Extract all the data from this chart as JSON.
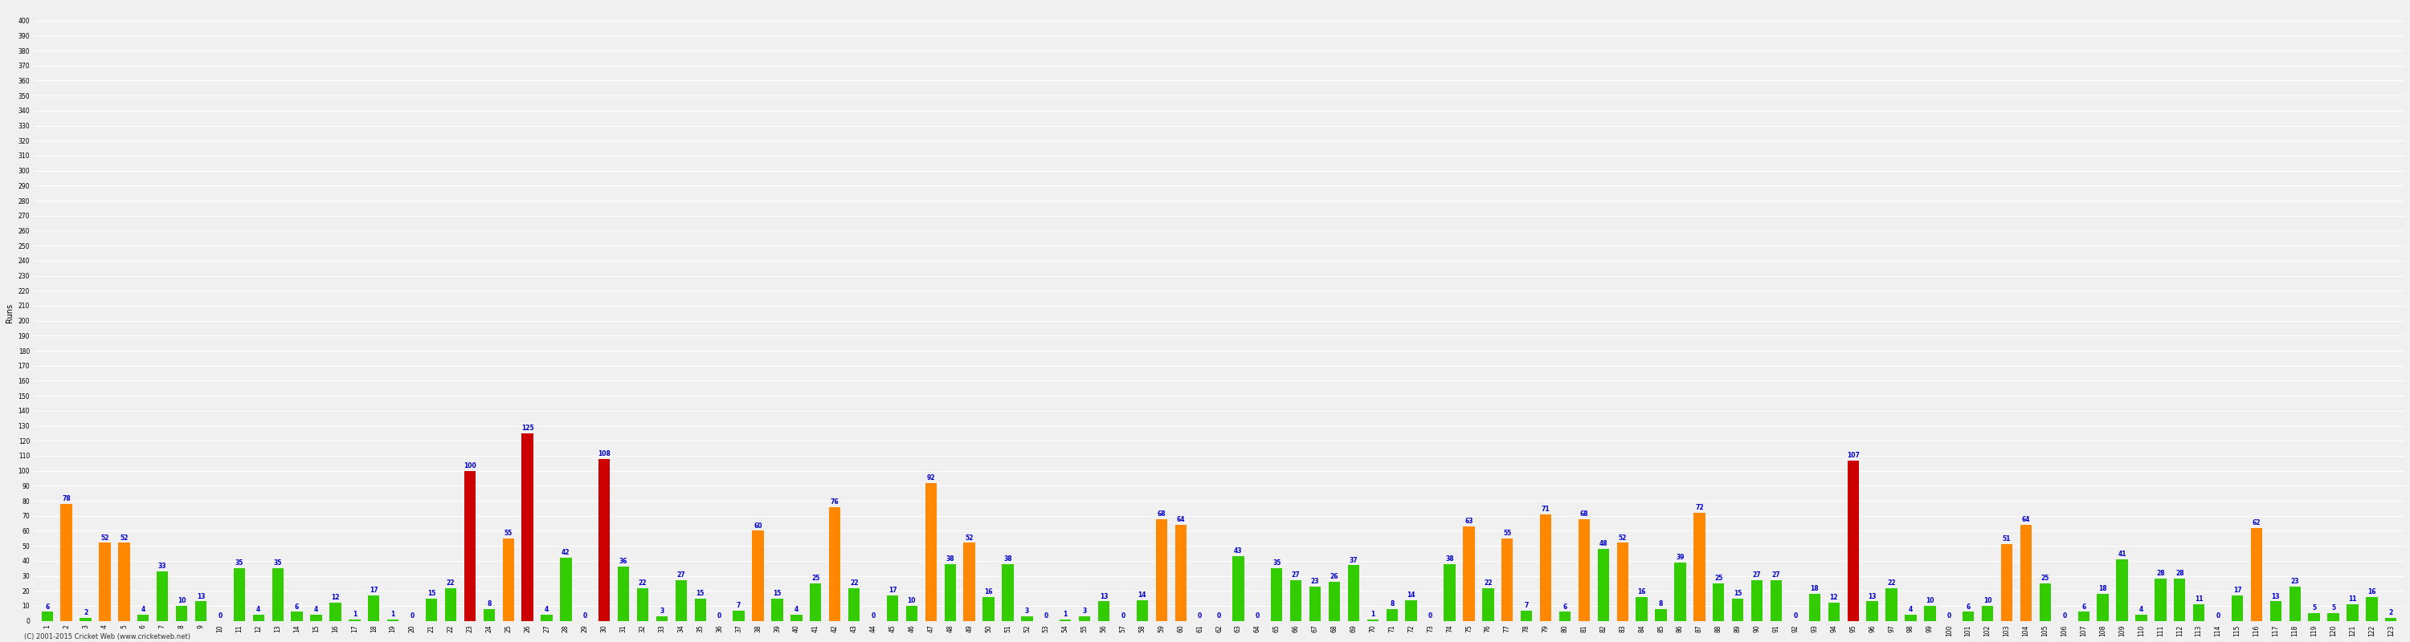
{
  "ylabel": "Runs",
  "footer": "(C) 2001-2015 Cricket Web (www.cricketweb.net)",
  "ylim": [
    0,
    410
  ],
  "background_color": "#f0f0f0",
  "grid_color": "#ffffff",
  "innings": [
    {
      "num": 1,
      "runs": 6,
      "color": "green"
    },
    {
      "num": 2,
      "runs": 78,
      "color": "orange"
    },
    {
      "num": 3,
      "runs": 2,
      "color": "green"
    },
    {
      "num": 4,
      "runs": 52,
      "color": "orange"
    },
    {
      "num": 5,
      "runs": 52,
      "color": "orange"
    },
    {
      "num": 6,
      "runs": 4,
      "color": "green"
    },
    {
      "num": 7,
      "runs": 33,
      "color": "green"
    },
    {
      "num": 8,
      "runs": 10,
      "color": "green"
    },
    {
      "num": 9,
      "runs": 13,
      "color": "green"
    },
    {
      "num": 10,
      "runs": 0,
      "color": "green"
    },
    {
      "num": 11,
      "runs": 35,
      "color": "green"
    },
    {
      "num": 12,
      "runs": 4,
      "color": "green"
    },
    {
      "num": 13,
      "runs": 35,
      "color": "green"
    },
    {
      "num": 14,
      "runs": 6,
      "color": "green"
    },
    {
      "num": 15,
      "runs": 4,
      "color": "green"
    },
    {
      "num": 16,
      "runs": 12,
      "color": "green"
    },
    {
      "num": 17,
      "runs": 1,
      "color": "green"
    },
    {
      "num": 18,
      "runs": 17,
      "color": "green"
    },
    {
      "num": 19,
      "runs": 1,
      "color": "green"
    },
    {
      "num": 20,
      "runs": 0,
      "color": "green"
    },
    {
      "num": 21,
      "runs": 15,
      "color": "green"
    },
    {
      "num": 22,
      "runs": 22,
      "color": "green"
    },
    {
      "num": 23,
      "runs": 100,
      "color": "red"
    },
    {
      "num": 24,
      "runs": 8,
      "color": "green"
    },
    {
      "num": 25,
      "runs": 55,
      "color": "orange"
    },
    {
      "num": 26,
      "runs": 125,
      "color": "red"
    },
    {
      "num": 27,
      "runs": 4,
      "color": "green"
    },
    {
      "num": 28,
      "runs": 42,
      "color": "green"
    },
    {
      "num": 29,
      "runs": 0,
      "color": "green"
    },
    {
      "num": 30,
      "runs": 108,
      "color": "red"
    },
    {
      "num": 31,
      "runs": 36,
      "color": "green"
    },
    {
      "num": 32,
      "runs": 22,
      "color": "green"
    },
    {
      "num": 33,
      "runs": 3,
      "color": "green"
    },
    {
      "num": 34,
      "runs": 27,
      "color": "green"
    },
    {
      "num": 35,
      "runs": 15,
      "color": "green"
    },
    {
      "num": 36,
      "runs": 0,
      "color": "green"
    },
    {
      "num": 37,
      "runs": 7,
      "color": "green"
    },
    {
      "num": 38,
      "runs": 60,
      "color": "orange"
    },
    {
      "num": 39,
      "runs": 15,
      "color": "green"
    },
    {
      "num": 40,
      "runs": 4,
      "color": "green"
    },
    {
      "num": 41,
      "runs": 25,
      "color": "green"
    },
    {
      "num": 42,
      "runs": 76,
      "color": "orange"
    },
    {
      "num": 43,
      "runs": 22,
      "color": "green"
    },
    {
      "num": 44,
      "runs": 0,
      "color": "green"
    },
    {
      "num": 45,
      "runs": 17,
      "color": "green"
    },
    {
      "num": 46,
      "runs": 10,
      "color": "green"
    },
    {
      "num": 47,
      "runs": 92,
      "color": "orange"
    },
    {
      "num": 48,
      "runs": 38,
      "color": "green"
    },
    {
      "num": 49,
      "runs": 52,
      "color": "orange"
    },
    {
      "num": 50,
      "runs": 16,
      "color": "green"
    },
    {
      "num": 51,
      "runs": 38,
      "color": "green"
    },
    {
      "num": 52,
      "runs": 3,
      "color": "green"
    },
    {
      "num": 53,
      "runs": 0,
      "color": "green"
    },
    {
      "num": 54,
      "runs": 1,
      "color": "green"
    },
    {
      "num": 55,
      "runs": 3,
      "color": "green"
    },
    {
      "num": 56,
      "runs": 13,
      "color": "green"
    },
    {
      "num": 57,
      "runs": 0,
      "color": "green"
    },
    {
      "num": 58,
      "runs": 14,
      "color": "green"
    },
    {
      "num": 59,
      "runs": 68,
      "color": "orange"
    },
    {
      "num": 60,
      "runs": 64,
      "color": "orange"
    },
    {
      "num": 61,
      "runs": 0,
      "color": "green"
    },
    {
      "num": 62,
      "runs": 0,
      "color": "green"
    },
    {
      "num": 63,
      "runs": 43,
      "color": "green"
    },
    {
      "num": 64,
      "runs": 0,
      "color": "green"
    },
    {
      "num": 65,
      "runs": 35,
      "color": "green"
    },
    {
      "num": 66,
      "runs": 27,
      "color": "green"
    },
    {
      "num": 67,
      "runs": 23,
      "color": "green"
    },
    {
      "num": 68,
      "runs": 26,
      "color": "green"
    },
    {
      "num": 69,
      "runs": 37,
      "color": "green"
    },
    {
      "num": 70,
      "runs": 1,
      "color": "green"
    },
    {
      "num": 71,
      "runs": 8,
      "color": "green"
    },
    {
      "num": 72,
      "runs": 14,
      "color": "green"
    },
    {
      "num": 73,
      "runs": 0,
      "color": "green"
    },
    {
      "num": 74,
      "runs": 38,
      "color": "green"
    },
    {
      "num": 75,
      "runs": 63,
      "color": "orange"
    },
    {
      "num": 76,
      "runs": 22,
      "color": "green"
    },
    {
      "num": 77,
      "runs": 55,
      "color": "orange"
    },
    {
      "num": 78,
      "runs": 7,
      "color": "green"
    },
    {
      "num": 79,
      "runs": 71,
      "color": "orange"
    },
    {
      "num": 80,
      "runs": 6,
      "color": "green"
    },
    {
      "num": 81,
      "runs": 68,
      "color": "orange"
    },
    {
      "num": 82,
      "runs": 48,
      "color": "green"
    },
    {
      "num": 83,
      "runs": 52,
      "color": "orange"
    },
    {
      "num": 84,
      "runs": 16,
      "color": "green"
    },
    {
      "num": 85,
      "runs": 8,
      "color": "green"
    },
    {
      "num": 86,
      "runs": 39,
      "color": "green"
    },
    {
      "num": 87,
      "runs": 72,
      "color": "orange"
    },
    {
      "num": 88,
      "runs": 25,
      "color": "green"
    },
    {
      "num": 89,
      "runs": 15,
      "color": "green"
    },
    {
      "num": 90,
      "runs": 27,
      "color": "green"
    },
    {
      "num": 91,
      "runs": 27,
      "color": "green"
    },
    {
      "num": 92,
      "runs": 0,
      "color": "green"
    },
    {
      "num": 93,
      "runs": 18,
      "color": "green"
    },
    {
      "num": 94,
      "runs": 12,
      "color": "green"
    },
    {
      "num": 95,
      "runs": 107,
      "color": "red"
    },
    {
      "num": 96,
      "runs": 13,
      "color": "green"
    },
    {
      "num": 97,
      "runs": 22,
      "color": "green"
    },
    {
      "num": 98,
      "runs": 4,
      "color": "green"
    },
    {
      "num": 99,
      "runs": 10,
      "color": "green"
    },
    {
      "num": 100,
      "runs": 0,
      "color": "green"
    },
    {
      "num": 101,
      "runs": 6,
      "color": "green"
    },
    {
      "num": 102,
      "runs": 10,
      "color": "green"
    },
    {
      "num": 103,
      "runs": 51,
      "color": "orange"
    },
    {
      "num": 104,
      "runs": 64,
      "color": "orange"
    },
    {
      "num": 105,
      "runs": 25,
      "color": "green"
    },
    {
      "num": 106,
      "runs": 0,
      "color": "green"
    },
    {
      "num": 107,
      "runs": 6,
      "color": "green"
    },
    {
      "num": 108,
      "runs": 18,
      "color": "green"
    },
    {
      "num": 109,
      "runs": 41,
      "color": "green"
    },
    {
      "num": 110,
      "runs": 4,
      "color": "green"
    },
    {
      "num": 111,
      "runs": 28,
      "color": "green"
    },
    {
      "num": 112,
      "runs": 28,
      "color": "green"
    },
    {
      "num": 113,
      "runs": 11,
      "color": "green"
    },
    {
      "num": 114,
      "runs": 0,
      "color": "green"
    },
    {
      "num": 115,
      "runs": 17,
      "color": "green"
    },
    {
      "num": 116,
      "runs": 62,
      "color": "orange"
    },
    {
      "num": 117,
      "runs": 13,
      "color": "green"
    },
    {
      "num": 118,
      "runs": 23,
      "color": "green"
    },
    {
      "num": 119,
      "runs": 5,
      "color": "green"
    },
    {
      "num": 120,
      "runs": 5,
      "color": "green"
    },
    {
      "num": 121,
      "runs": 11,
      "color": "green"
    },
    {
      "num": 122,
      "runs": 16,
      "color": "green"
    },
    {
      "num": 123,
      "runs": 2,
      "color": "green"
    }
  ],
  "color_green": "#33cc00",
  "color_orange": "#ff8800",
  "color_red": "#cc0000",
  "label_color": "#0000cc",
  "label_fontsize": 5.5,
  "bar_width": 0.6,
  "tick_fontsize": 5.5,
  "ylabel_fontsize": 7,
  "footer_fontsize": 6
}
